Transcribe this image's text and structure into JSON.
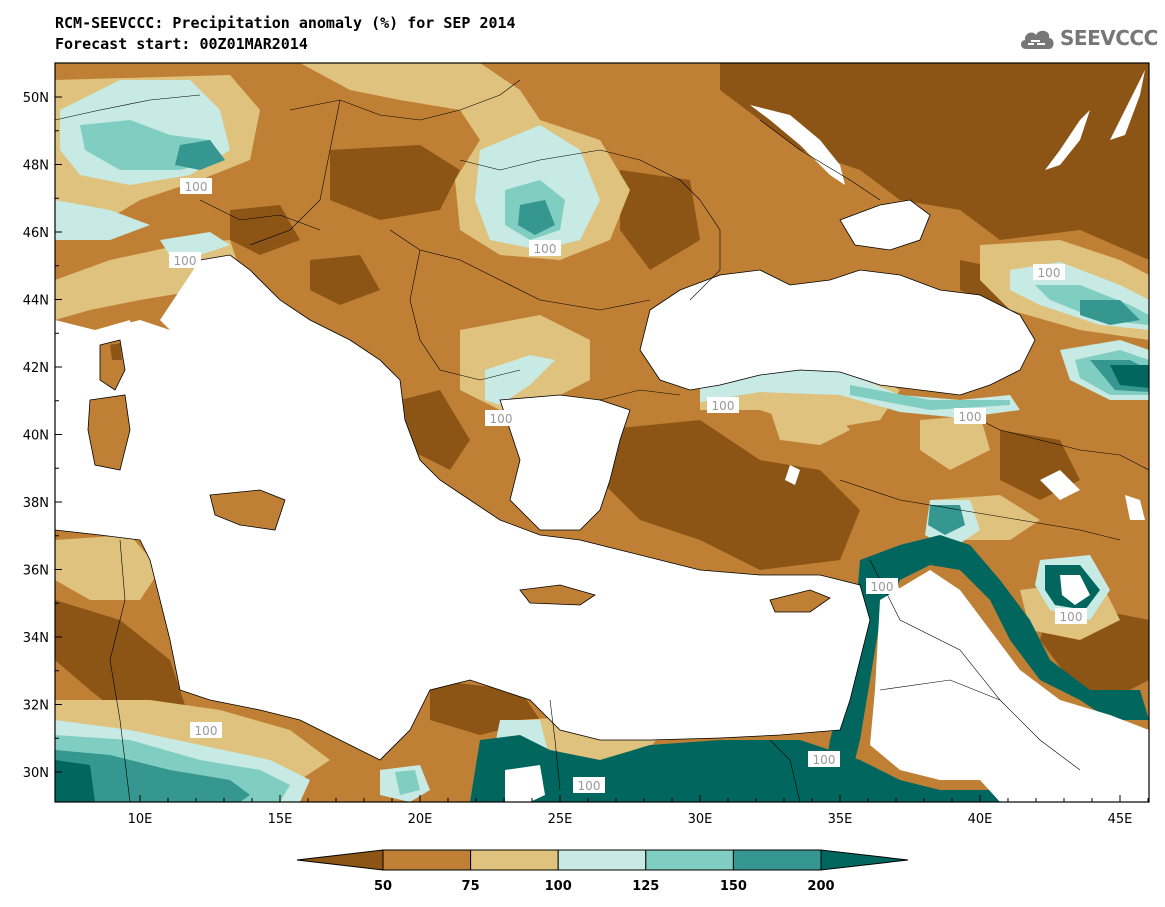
{
  "header": {
    "title_line1": "RCM-SEEVCCC: Precipitation anomaly (%) for SEP 2014",
    "title_line2": "Forecast start: 00Z01MAR2014",
    "logo_text": "SEEVCCC"
  },
  "map": {
    "lat_ticks": [
      "50N",
      "48N",
      "46N",
      "44N",
      "42N",
      "40N",
      "38N",
      "36N",
      "34N",
      "32N",
      "30N"
    ],
    "lon_ticks": [
      "10E",
      "15E",
      "20E",
      "25E",
      "30E",
      "35E",
      "40E",
      "45E"
    ],
    "contour_labels": [
      "100",
      "100",
      "100",
      "100",
      "100",
      "100",
      "100",
      "100",
      "100",
      "100",
      "100",
      "100"
    ]
  },
  "colorbar": {
    "boundaries": [
      "50",
      "75",
      "100",
      "125",
      "150",
      "200"
    ],
    "colors": [
      "#8c5515",
      "#bf8035",
      "#dfc27d",
      "#c7eae5",
      "#80cdc1",
      "#35978f",
      "#01665e"
    ]
  }
}
